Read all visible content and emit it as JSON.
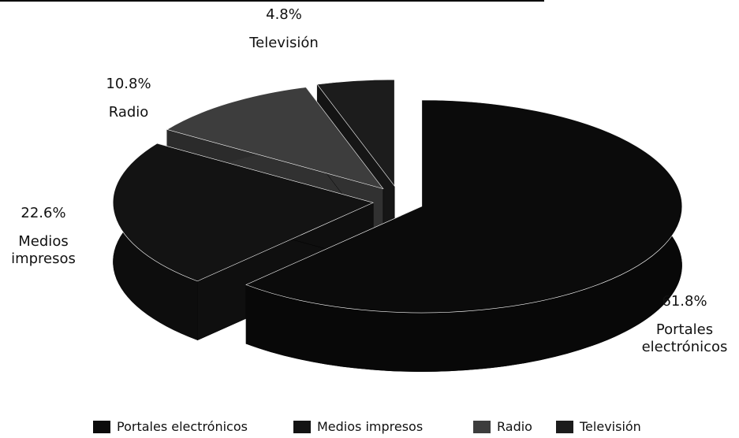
{
  "chart_data": {
    "type": "pie",
    "categories": [
      "Portales electrónicos",
      "Medios impresos",
      "Radio",
      "Televisión"
    ],
    "values": [
      61.8,
      22.6,
      10.8,
      4.8
    ],
    "value_labels": [
      "61.8%",
      "22.6%",
      "10.8%",
      "4.8%"
    ],
    "colors": [
      "#0b0b0b",
      "#131313",
      "#3d3d3d",
      "#1c1c1c"
    ]
  }
}
